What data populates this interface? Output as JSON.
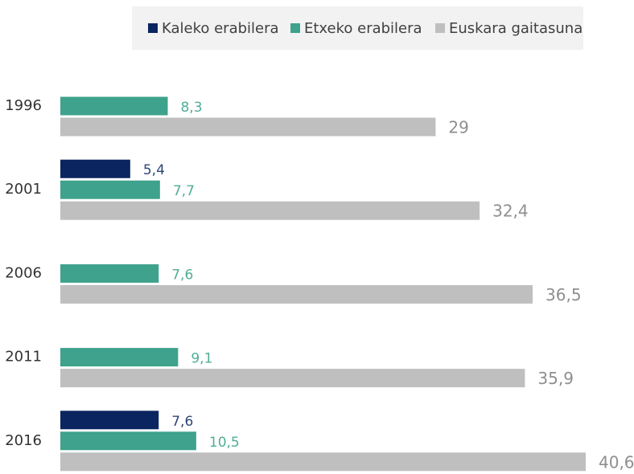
{
  "chart_data": {
    "type": "bar",
    "orientation": "horizontal",
    "categories": [
      "1996",
      "2001",
      "2006",
      "2011",
      "2016"
    ],
    "series": [
      {
        "name": "Kaleko erabilera",
        "color": "#0b2560",
        "values": [
          null,
          5.4,
          null,
          null,
          7.6
        ],
        "value_labels": [
          null,
          "5,4",
          null,
          null,
          "7,6"
        ]
      },
      {
        "name": "Etxeko erabilera",
        "color": "#3ea28c",
        "values": [
          8.3,
          7.7,
          7.6,
          9.1,
          10.5
        ],
        "value_labels": [
          "8,3",
          "7,7",
          "7,6",
          "9,1",
          "10,5"
        ]
      },
      {
        "name": "Euskara gaitasuna",
        "color": "#bfbfbf",
        "values": [
          29,
          32.4,
          36.5,
          35.9,
          40.6
        ],
        "value_labels": [
          "29",
          "32,4",
          "36,5",
          "35,9",
          "40,6"
        ]
      }
    ],
    "legend": "top"
  }
}
